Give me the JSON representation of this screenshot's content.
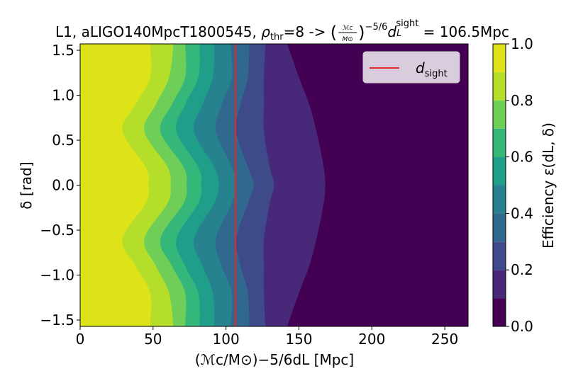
{
  "chart_data": {
    "type": "heatmap",
    "title": {
      "prefix": "L1, aLIGO140MpcT1800545, ",
      "rho": "ρ",
      "rho_sub": "thr",
      "rho_value": "=8 -> ",
      "frac_num": "ℳc",
      "frac_den": "M⊙",
      "exponent": "−5/6",
      "dist": "d",
      "dist_sub": "L",
      "dist_sup": "sight",
      "equals": " = ",
      "value_label": "106.5Mpc"
    },
    "xlabel": "(ℳc/M⊙)−5/6dL [Mpc]",
    "ylabel": "δ [rad]",
    "xlim": [
      0,
      266
    ],
    "ylim": [
      -1.5708,
      1.5708
    ],
    "x_ticks": [
      0,
      50,
      100,
      150,
      200,
      250
    ],
    "x_tick_labels": [
      "0",
      "50",
      "100",
      "150",
      "200",
      "250"
    ],
    "y_ticks": [
      1.5,
      1.0,
      0.5,
      0.0,
      -0.5,
      -1.0,
      -1.5
    ],
    "y_tick_labels": [
      "1.5",
      "1.0",
      "0.5",
      "0.0",
      "−0.5",
      "−1.0",
      "−1.5"
    ],
    "legend": {
      "label": "d",
      "label_sub": "sight",
      "color": "#e8262a",
      "position": "top-right"
    },
    "d_sight": 106.5,
    "colorbar": {
      "label": "Efficiency ε(dL, δ)",
      "ticks": [
        1.0,
        0.8,
        0.6,
        0.4,
        0.2,
        0.0
      ],
      "tick_labels": [
        "1.0",
        "0.8",
        "0.6",
        "0.4",
        "0.2",
        "0.0"
      ],
      "levels": [
        0.0,
        0.1,
        0.2,
        0.3,
        0.4,
        0.5,
        0.6,
        0.7,
        0.8,
        0.9,
        1.0
      ],
      "colors": [
        "#440154",
        "#482878",
        "#3e4a89",
        "#31688e",
        "#26828e",
        "#1f9e89",
        "#35b779",
        "#6ece58",
        "#b5de2b",
        "#dde318"
      ]
    },
    "contour_boundaries": [
      {
        "level": 0.9,
        "d": [
          [
            -1.5708,
            48
          ],
          [
            -1.2,
            48
          ],
          [
            -0.9,
            38
          ],
          [
            -0.6,
            29
          ],
          [
            -0.2,
            45
          ],
          [
            0.0,
            47
          ],
          [
            0.2,
            45
          ],
          [
            0.6,
            29
          ],
          [
            0.9,
            38
          ],
          [
            1.2,
            48
          ],
          [
            1.5708,
            48
          ]
        ]
      },
      {
        "level": 0.8,
        "d": [
          [
            -1.5708,
            64
          ],
          [
            -1.2,
            61
          ],
          [
            -0.9,
            52
          ],
          [
            -0.6,
            44
          ],
          [
            -0.2,
            60
          ],
          [
            0.0,
            62
          ],
          [
            0.2,
            60
          ],
          [
            0.6,
            44
          ],
          [
            0.9,
            52
          ],
          [
            1.2,
            61
          ],
          [
            1.5708,
            64
          ]
        ]
      },
      {
        "level": 0.7,
        "d": [
          [
            -1.5708,
            72
          ],
          [
            -1.2,
            72
          ],
          [
            -0.9,
            63
          ],
          [
            -0.6,
            55
          ],
          [
            -0.2,
            71
          ],
          [
            0.0,
            73
          ],
          [
            0.2,
            71
          ],
          [
            0.6,
            55
          ],
          [
            0.9,
            63
          ],
          [
            1.2,
            72
          ],
          [
            1.5708,
            72
          ]
        ]
      },
      {
        "level": 0.6,
        "d": [
          [
            -1.5708,
            82
          ],
          [
            -1.2,
            81
          ],
          [
            -0.9,
            72
          ],
          [
            -0.6,
            66
          ],
          [
            -0.2,
            81
          ],
          [
            0.0,
            83
          ],
          [
            0.2,
            81
          ],
          [
            0.6,
            66
          ],
          [
            0.9,
            72
          ],
          [
            1.2,
            81
          ],
          [
            1.5708,
            82
          ]
        ]
      },
      {
        "level": 0.5,
        "d": [
          [
            -1.5708,
            92
          ],
          [
            -1.2,
            91
          ],
          [
            -0.9,
            84
          ],
          [
            -0.6,
            78
          ],
          [
            -0.2,
            92
          ],
          [
            0.0,
            95
          ],
          [
            0.2,
            92
          ],
          [
            0.6,
            78
          ],
          [
            0.9,
            84
          ],
          [
            1.2,
            91
          ],
          [
            1.5708,
            92
          ]
        ]
      },
      {
        "level": 0.4,
        "d": [
          [
            -1.5708,
            103
          ],
          [
            -1.2,
            104
          ],
          [
            -0.9,
            97
          ],
          [
            -0.6,
            93
          ],
          [
            -0.2,
            104
          ],
          [
            0.0,
            107
          ],
          [
            0.2,
            104
          ],
          [
            0.6,
            93
          ],
          [
            0.9,
            97
          ],
          [
            1.2,
            104
          ],
          [
            1.5708,
            103
          ]
        ]
      },
      {
        "level": 0.3,
        "d": [
          [
            -1.5708,
            116
          ],
          [
            -1.2,
            115
          ],
          [
            -0.9,
            110
          ],
          [
            -0.6,
            107
          ],
          [
            -0.2,
            115
          ],
          [
            0.0,
            119
          ],
          [
            0.2,
            115
          ],
          [
            0.6,
            107
          ],
          [
            0.9,
            110
          ],
          [
            1.2,
            115
          ],
          [
            1.5708,
            116
          ]
        ]
      },
      {
        "level": 0.2,
        "d": [
          [
            -1.5708,
            127
          ],
          [
            -1.2,
            126
          ],
          [
            -0.9,
            126
          ],
          [
            -0.6,
            126
          ],
          [
            -0.2,
            130
          ],
          [
            0.0,
            133
          ],
          [
            0.2,
            130
          ],
          [
            0.6,
            126
          ],
          [
            0.9,
            126
          ],
          [
            1.2,
            126
          ],
          [
            1.5708,
            127
          ]
        ]
      },
      {
        "level": 0.1,
        "d": [
          [
            -1.5708,
            142
          ],
          [
            -1.2,
            150
          ],
          [
            -0.9,
            157
          ],
          [
            -0.6,
            162
          ],
          [
            -0.2,
            167
          ],
          [
            0.0,
            168
          ],
          [
            0.2,
            167
          ],
          [
            0.6,
            162
          ],
          [
            0.9,
            157
          ],
          [
            1.2,
            150
          ],
          [
            1.5708,
            142
          ]
        ]
      }
    ]
  }
}
